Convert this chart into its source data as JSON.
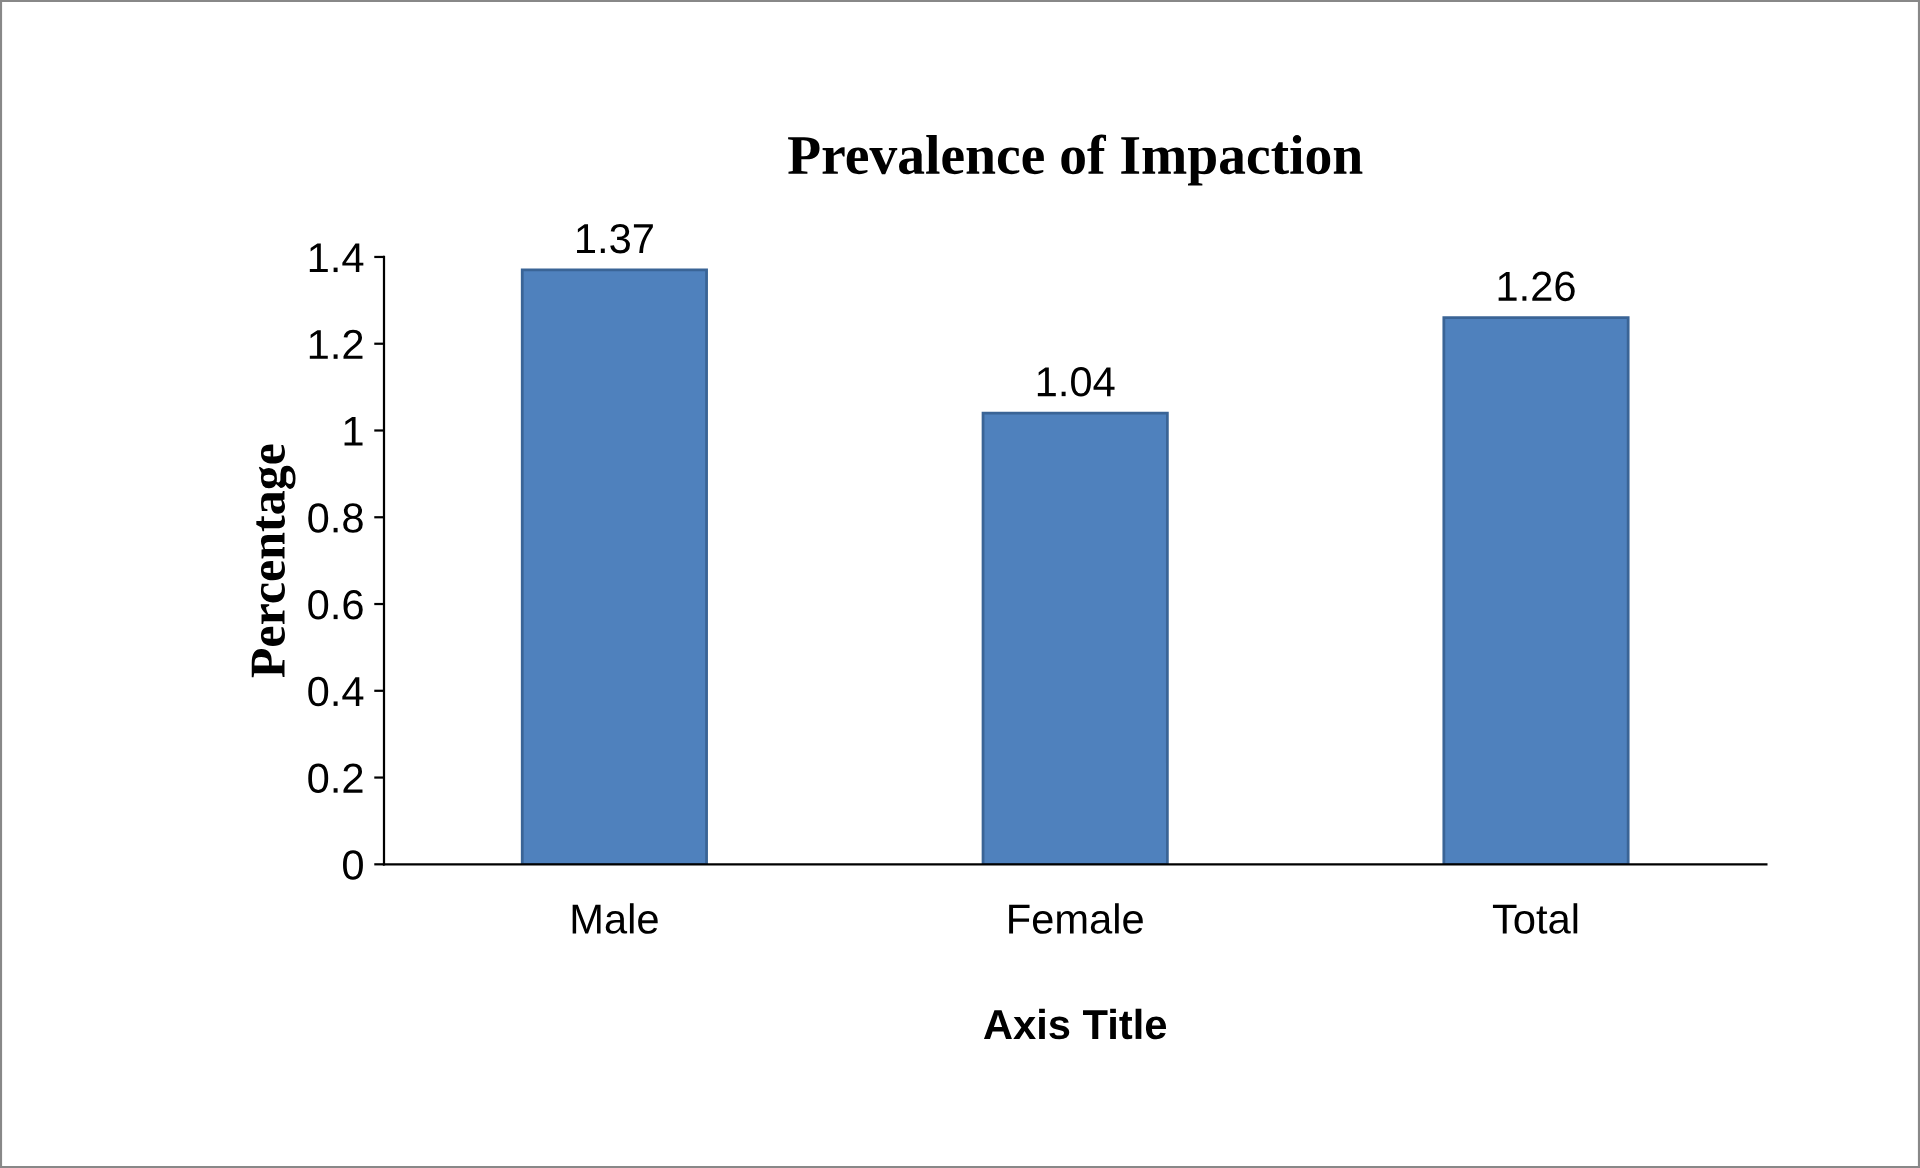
{
  "chart_data": {
    "type": "bar",
    "title": "Prevalence of Impaction",
    "xlabel": "Axis Title",
    "ylabel": "Percentage",
    "categories": [
      "Male",
      "Female",
      "Total"
    ],
    "values": [
      1.37,
      1.04,
      1.26
    ],
    "color": "#4f81bd",
    "ylim": [
      0,
      1.4
    ],
    "yticks": [
      0,
      0.2,
      0.4,
      0.6,
      0.8,
      1,
      1.2,
      1.4
    ],
    "data_labels": true
  }
}
